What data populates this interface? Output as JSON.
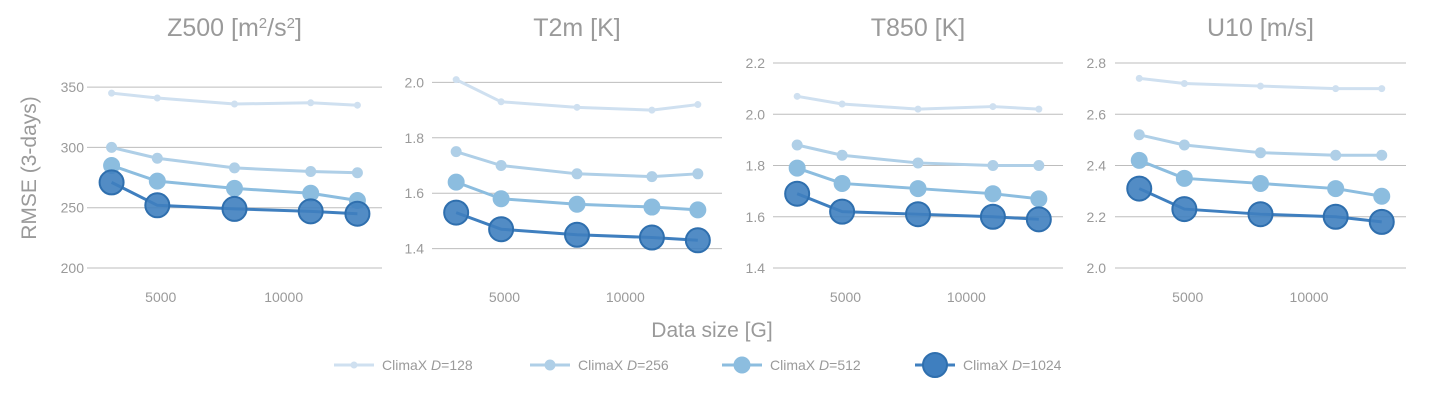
{
  "figure": {
    "xlabel": "Data size [G]",
    "ylabel": "RMSE (3-days)"
  },
  "legend": [
    {
      "prefix": "ClimaX ",
      "var": "D",
      "suffix": "=128"
    },
    {
      "prefix": "ClimaX ",
      "var": "D",
      "suffix": "=256"
    },
    {
      "prefix": "ClimaX ",
      "var": "D",
      "suffix": "=512"
    },
    {
      "prefix": "ClimaX ",
      "var": "D",
      "suffix": "=1024"
    }
  ],
  "colors": [
    "#cfe0f0",
    "#afcfe7",
    "#8cbddf",
    "#3f7fbf"
  ],
  "chart_data": [
    {
      "type": "line",
      "title_parts": [
        "Z500 [m",
        "2",
        "/s",
        "2",
        "]"
      ],
      "x": [
        3000,
        4860,
        8000,
        11100,
        13000
      ],
      "xticks": [
        5000,
        10000
      ],
      "ylim": [
        200,
        370
      ],
      "yticks": [
        200,
        250,
        300,
        350
      ],
      "series": [
        {
          "name": "ClimaX D=128",
          "values": [
            345,
            341,
            336,
            337,
            335
          ]
        },
        {
          "name": "ClimaX D=256",
          "values": [
            300,
            291,
            283,
            280,
            279
          ]
        },
        {
          "name": "ClimaX D=512",
          "values": [
            285,
            272,
            266,
            262,
            256
          ]
        },
        {
          "name": "ClimaX D=1024",
          "values": [
            271,
            252,
            249,
            247,
            245
          ]
        }
      ]
    },
    {
      "type": "line",
      "title_parts": [
        "T2m [K]"
      ],
      "x": [
        3000,
        4860,
        8000,
        11100,
        13000
      ],
      "xticks": [
        5000,
        10000
      ],
      "ylim": [
        1.33,
        2.07
      ],
      "yticks": [
        1.4,
        1.6,
        1.8,
        2.0
      ],
      "series": [
        {
          "name": "ClimaX D=128",
          "values": [
            2.01,
            1.93,
            1.91,
            1.9,
            1.92
          ]
        },
        {
          "name": "ClimaX D=256",
          "values": [
            1.75,
            1.7,
            1.67,
            1.66,
            1.67
          ]
        },
        {
          "name": "ClimaX D=512",
          "values": [
            1.64,
            1.58,
            1.56,
            1.55,
            1.54
          ]
        },
        {
          "name": "ClimaX D=1024",
          "values": [
            1.53,
            1.47,
            1.45,
            1.44,
            1.43
          ]
        }
      ]
    },
    {
      "type": "line",
      "title_parts": [
        "T850 [K]"
      ],
      "x": [
        3000,
        4860,
        8000,
        11100,
        13000
      ],
      "xticks": [
        5000,
        10000
      ],
      "ylim": [
        1.4,
        2.2
      ],
      "yticks": [
        1.4,
        1.6,
        1.8,
        2.0,
        2.2
      ],
      "series": [
        {
          "name": "ClimaX D=128",
          "values": [
            2.07,
            2.04,
            2.02,
            2.03,
            2.02
          ]
        },
        {
          "name": "ClimaX D=256",
          "values": [
            1.88,
            1.84,
            1.81,
            1.8,
            1.8
          ]
        },
        {
          "name": "ClimaX D=512",
          "values": [
            1.79,
            1.73,
            1.71,
            1.69,
            1.67
          ]
        },
        {
          "name": "ClimaX D=1024",
          "values": [
            1.69,
            1.62,
            1.61,
            1.6,
            1.59
          ]
        }
      ]
    },
    {
      "type": "line",
      "title_parts": [
        "U10 [m/s]"
      ],
      "x": [
        3000,
        4860,
        8000,
        11100,
        13000
      ],
      "xticks": [
        5000,
        10000
      ],
      "ylim": [
        2.0,
        2.8
      ],
      "yticks": [
        2.0,
        2.2,
        2.4,
        2.6,
        2.8
      ],
      "series": [
        {
          "name": "ClimaX D=128",
          "values": [
            2.74,
            2.72,
            2.71,
            2.7,
            2.7
          ]
        },
        {
          "name": "ClimaX D=256",
          "values": [
            2.52,
            2.48,
            2.45,
            2.44,
            2.44
          ]
        },
        {
          "name": "ClimaX D=512",
          "values": [
            2.42,
            2.35,
            2.33,
            2.31,
            2.28
          ]
        },
        {
          "name": "ClimaX D=1024",
          "values": [
            2.31,
            2.23,
            2.21,
            2.2,
            2.18
          ]
        }
      ]
    }
  ]
}
